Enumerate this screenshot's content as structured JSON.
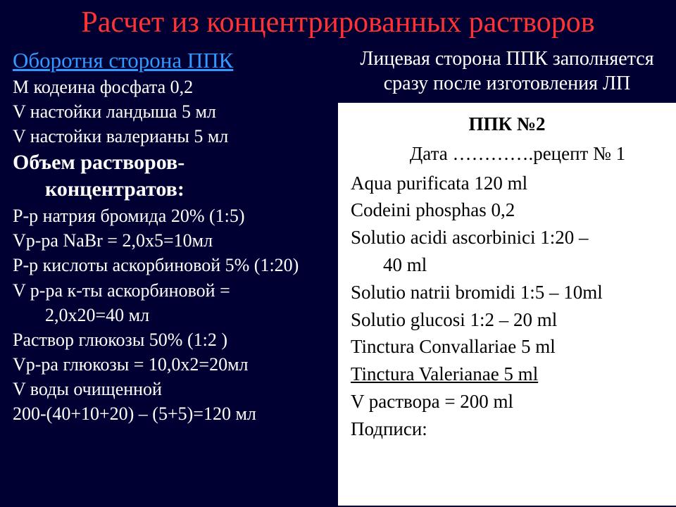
{
  "title": "Расчет из концентрированных растворов",
  "left": {
    "heading": "Оборотня сторона ППК",
    "l1": "M кодеина фосфата 0,2",
    "l2": "V настойки ландыша 5 мл",
    "l3": "V настойки валерианы 5 мл",
    "sub1": "Объем растворов-",
    "sub2": "концентратов:",
    "c1": "Р-р натрия бромида 20% (1:5)",
    "c2": "Vр-ра NaBr = 2,0х5=10мл",
    "c3": "Р-р кислоты аскорбиновой  5% (1:20)",
    "c4a": "V р-ра к-ты аскорбиновой =",
    "c4b": "2,0х20=40 мл",
    "c5": "Раствор глюкозы 50% (1:2 )",
    "c6": "Vр-ра глюкозы = 10,0х2=20мл",
    "c7": "V воды очищенной",
    "c8": "200-(40+10+20) – (5+5)=120 мл"
  },
  "right_top": "Лицевая сторона ППК заполняется сразу после изготовления ЛП",
  "ppk": {
    "title": "ППК №2",
    "date": "Дата ………….рецепт № 1",
    "r1": "Aqua purificata 120 ml",
    "r2": "Codeini phosphas 0,2",
    "r3a": "Solutio acidi ascorbinici 1:20 –",
    "r3b": "40 ml",
    "r4": "Solutio natrii bromidi 1:5 – 10ml",
    "r5": "Solutio glucosi 1:2 – 20 ml",
    "r6": "Tinctura Convallariae 5 ml",
    "r7": "Tinctura Valerianae 5 ml",
    "r8": "V раствора = 200 ml",
    "r9": "Подписи:"
  },
  "colors": {
    "background": "#000033",
    "title": "#ff3333",
    "link": "#3399ff",
    "body_text": "#ffffff",
    "box_bg": "#ffffff",
    "box_text": "#000000"
  }
}
